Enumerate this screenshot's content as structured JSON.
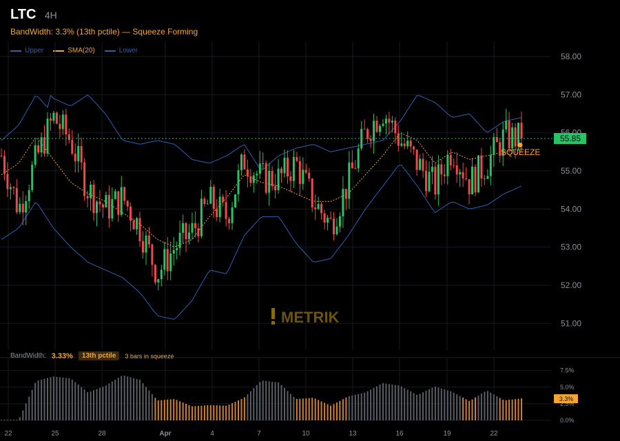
{
  "header": {
    "symbol": "LTC",
    "timeframe": "4H",
    "subtitle": "BandWidth: 3.3% (13th pctile) — Squeeze Forming"
  },
  "legend": [
    {
      "label": "Upper",
      "color": "#2f5fb5"
    },
    {
      "label": "SMA(20)",
      "color": "#f7a531"
    },
    {
      "label": "Lower",
      "color": "#2f5fb5"
    }
  ],
  "colors": {
    "up": "#26c464",
    "down": "#ef4a4a",
    "band": "#2f5fb5",
    "sma": "#f7a531",
    "grid": "#161a22",
    "bw_normal": "#5a5e66",
    "bw_squeeze": "#d0812a",
    "bw_tight": "#d43c3c"
  },
  "price_tag": {
    "value": "55.85",
    "color": "#26c464"
  },
  "annotation": {
    "text": "SQUEEZE",
    "color": "#f7a531"
  },
  "watermark": "METRIK",
  "bandwidth_panel": {
    "label": "BandWidth:",
    "value": "3.33%",
    "percentile": "13th pctile",
    "squeeze_note": "3 bars in squeeze",
    "tag": "3.3%"
  },
  "chart_data": [
    {
      "type": "candlestick",
      "title": "LTC 4H",
      "x_ticks": [
        "22",
        "25",
        "28",
        "Apr",
        "4",
        "7",
        "10",
        "13",
        "16",
        "19",
        "22"
      ],
      "y_ticks": [
        "51.00",
        "52.00",
        "53.00",
        "54.00",
        "55.00",
        "56.00",
        "57.00",
        "58.00"
      ],
      "ylim": [
        50.3,
        58.4
      ],
      "last_price": 55.85,
      "grid": true,
      "series": [
        {
          "name": "Upper",
          "values": [
            56.2,
            56.6,
            57.4,
            56.9,
            56.7,
            57.0,
            56.5,
            55.8,
            55.7,
            55.8,
            55.7,
            55.3,
            55.2,
            55.4,
            55.7,
            55.0,
            55.4,
            55.6,
            55.7,
            55.5,
            55.6,
            55.7,
            55.8,
            56.3,
            57.0,
            56.8,
            56.4,
            56.5,
            56.0,
            56.3,
            56.4
          ]
        },
        {
          "name": "SMA(20)",
          "values": [
            54.9,
            55.2,
            55.9,
            55.3,
            54.7,
            54.4,
            54.2,
            53.9,
            53.6,
            53.2,
            53.0,
            53.2,
            53.8,
            54.3,
            54.9,
            54.7,
            54.6,
            54.4,
            54.2,
            54.2,
            54.4,
            54.9,
            55.4,
            56.0,
            55.8,
            55.2,
            55.5,
            55.3,
            55.4,
            55.5,
            55.6
          ]
        },
        {
          "name": "Lower",
          "values": [
            53.2,
            53.5,
            54.2,
            53.5,
            53.0,
            52.6,
            52.4,
            52.2,
            51.8,
            51.2,
            51.1,
            51.6,
            52.4,
            52.3,
            53.3,
            53.8,
            53.8,
            53.1,
            52.6,
            52.7,
            53.3,
            54.0,
            54.6,
            55.2,
            54.6,
            53.9,
            54.2,
            54.0,
            54.1,
            54.4,
            54.6
          ]
        },
        {
          "name": "Close",
          "values": [
            55.4,
            54.0,
            55.3,
            56.4,
            55.8,
            54.5,
            54.0,
            54.3,
            53.5,
            52.3,
            53.0,
            53.4,
            54.2,
            53.8,
            55.3,
            54.8,
            54.8,
            55.2,
            54.2,
            53.6,
            54.7,
            56.0,
            56.6,
            55.8,
            55.2,
            54.6,
            55.6,
            54.7,
            55.2,
            55.9,
            55.85
          ]
        }
      ],
      "bandwidth": {
        "ylim": [
          0,
          8.5
        ],
        "y_ticks": [
          "7.5%",
          "5.0%",
          "2.5%",
          "0.0%"
        ],
        "values": [
          0.1,
          0.1,
          5.9,
          6.6,
          6.3,
          4.2,
          5.2,
          6.8,
          6.1,
          3.0,
          3.2,
          2.1,
          2.3,
          2.2,
          3.4,
          6.0,
          5.7,
          3.2,
          3.4,
          2.2,
          3.6,
          4.2,
          5.6,
          5.2,
          3.8,
          5.1,
          4.3,
          2.9,
          4.5,
          3.0,
          3.3
        ],
        "squeeze_threshold": 3.5
      }
    }
  ]
}
